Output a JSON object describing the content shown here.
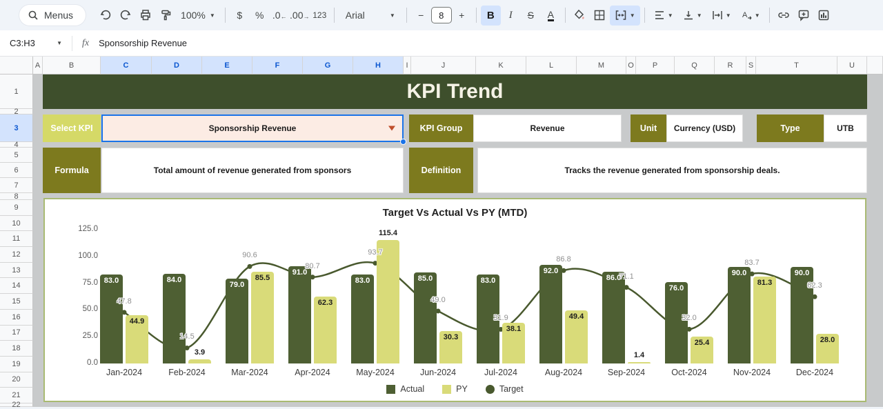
{
  "toolbar": {
    "menus_label": "Menus",
    "zoom": "100%",
    "currency": "$",
    "percent": "%",
    "dec0": ".0",
    "dec00": ".00",
    "more_formats": "123",
    "font_name": "Arial",
    "font_size": "8",
    "bold": "B",
    "italic": "I",
    "strike": "S",
    "text_color": "A"
  },
  "formula_bar": {
    "cell_ref": "C3:H3",
    "fx": "fx",
    "value": "Sponsorship Revenue"
  },
  "grid": {
    "columns": [
      {
        "label": "A",
        "w": 14
      },
      {
        "label": "B",
        "w": 84
      },
      {
        "label": "C",
        "w": 74,
        "sel": true
      },
      {
        "label": "D",
        "w": 73,
        "sel": true
      },
      {
        "label": "E",
        "w": 73,
        "sel": true
      },
      {
        "label": "F",
        "w": 73,
        "sel": true
      },
      {
        "label": "G",
        "w": 73,
        "sel": true
      },
      {
        "label": "H",
        "w": 73,
        "sel": true
      },
      {
        "label": "I",
        "w": 11
      },
      {
        "label": "J",
        "w": 94
      },
      {
        "label": "K",
        "w": 73
      },
      {
        "label": "L",
        "w": 73
      },
      {
        "label": "M",
        "w": 72
      },
      {
        "label": "O",
        "w": 14
      },
      {
        "label": "P",
        "w": 56
      },
      {
        "label": "Q",
        "w": 58
      },
      {
        "label": "R",
        "w": 46
      },
      {
        "label": "S",
        "w": 14
      },
      {
        "label": "T",
        "w": 118
      },
      {
        "label": "U",
        "w": 43
      },
      {
        "label": "",
        "w": 23
      }
    ],
    "rows": [
      {
        "n": "1",
        "h": 50
      },
      {
        "n": "2",
        "h": 8
      },
      {
        "n": "3",
        "h": 40,
        "sel": true
      },
      {
        "n": "4",
        "h": 8
      },
      {
        "n": "5",
        "h": 22
      },
      {
        "n": "6",
        "h": 22
      },
      {
        "n": "7",
        "h": 22
      },
      {
        "n": "8",
        "h": 10
      },
      {
        "n": "9",
        "h": 22.7
      },
      {
        "n": "10",
        "h": 22.7
      },
      {
        "n": "11",
        "h": 22.7
      },
      {
        "n": "12",
        "h": 22.7
      },
      {
        "n": "13",
        "h": 22.7
      },
      {
        "n": "14",
        "h": 22.7
      },
      {
        "n": "15",
        "h": 22.7
      },
      {
        "n": "16",
        "h": 22.7
      },
      {
        "n": "17",
        "h": 22.7
      },
      {
        "n": "18",
        "h": 22.7
      },
      {
        "n": "19",
        "h": 22.7
      },
      {
        "n": "20",
        "h": 22.7
      },
      {
        "n": "21",
        "h": 22.7
      },
      {
        "n": "22",
        "h": 5
      }
    ]
  },
  "dashboard": {
    "title": "KPI Trend",
    "select_kpi": {
      "label": "Select KPI",
      "value": "Sponsorship Revenue"
    },
    "kpi_group": {
      "label": "KPI Group",
      "value": "Revenue"
    },
    "unit": {
      "label": "Unit",
      "value": "Currency (USD)"
    },
    "type": {
      "label": "Type",
      "value": "UTB"
    },
    "formula": {
      "label": "Formula",
      "value": "Total amount of revenue generated from sponsors"
    },
    "definition": {
      "label": "Definition",
      "value": "Tracks the revenue generated from sponsorship deals."
    }
  },
  "chart_data": {
    "type": "bar",
    "title": "Target Vs Actual Vs PY (MTD)",
    "categories": [
      "Jan-2024",
      "Feb-2024",
      "Mar-2024",
      "Apr-2024",
      "May-2024",
      "Jun-2024",
      "Jul-2024",
      "Aug-2024",
      "Sep-2024",
      "Oct-2024",
      "Nov-2024",
      "Dec-2024"
    ],
    "series": [
      {
        "name": "Actual",
        "render": "bar",
        "color": "#4e5f33",
        "label_color": "#ffffff",
        "values": [
          83.0,
          84.0,
          79.0,
          91.0,
          83.0,
          85.0,
          83.0,
          92.0,
          86.0,
          76.0,
          90.0,
          90.0
        ]
      },
      {
        "name": "PY",
        "render": "bar",
        "color": "#d9db79",
        "label_color": "#1d1d1d",
        "values": [
          44.9,
          3.9,
          85.5,
          62.3,
          115.4,
          30.3,
          38.1,
          49.4,
          1.4,
          25.4,
          81.3,
          28.0
        ]
      },
      {
        "name": "Target",
        "render": "line",
        "color": "#49592e",
        "values": [
          47.8,
          14.5,
          90.6,
          80.7,
          93.7,
          49.0,
          31.9,
          86.8,
          71.1,
          32.0,
          83.7,
          62.3
        ]
      }
    ],
    "ylim": [
      0,
      125
    ],
    "yticks": [
      0,
      25,
      50,
      75,
      100,
      125
    ],
    "ytick_labels": [
      "0.0",
      "25.0",
      "50.0",
      "75.0",
      "100.0",
      "125.0"
    ],
    "grid": false,
    "legend_position": "bottom"
  },
  "colors": {
    "banner_green": "#3e4f2c",
    "olive_label": "#7d7a1e",
    "select_kpi_yellow": "#d5d967",
    "dropdown_bg": "#fcece4",
    "selection_blue": "#1a73e8",
    "bar_actual": "#4e5f33",
    "bar_py": "#d9db79",
    "target_line": "#49592e"
  }
}
